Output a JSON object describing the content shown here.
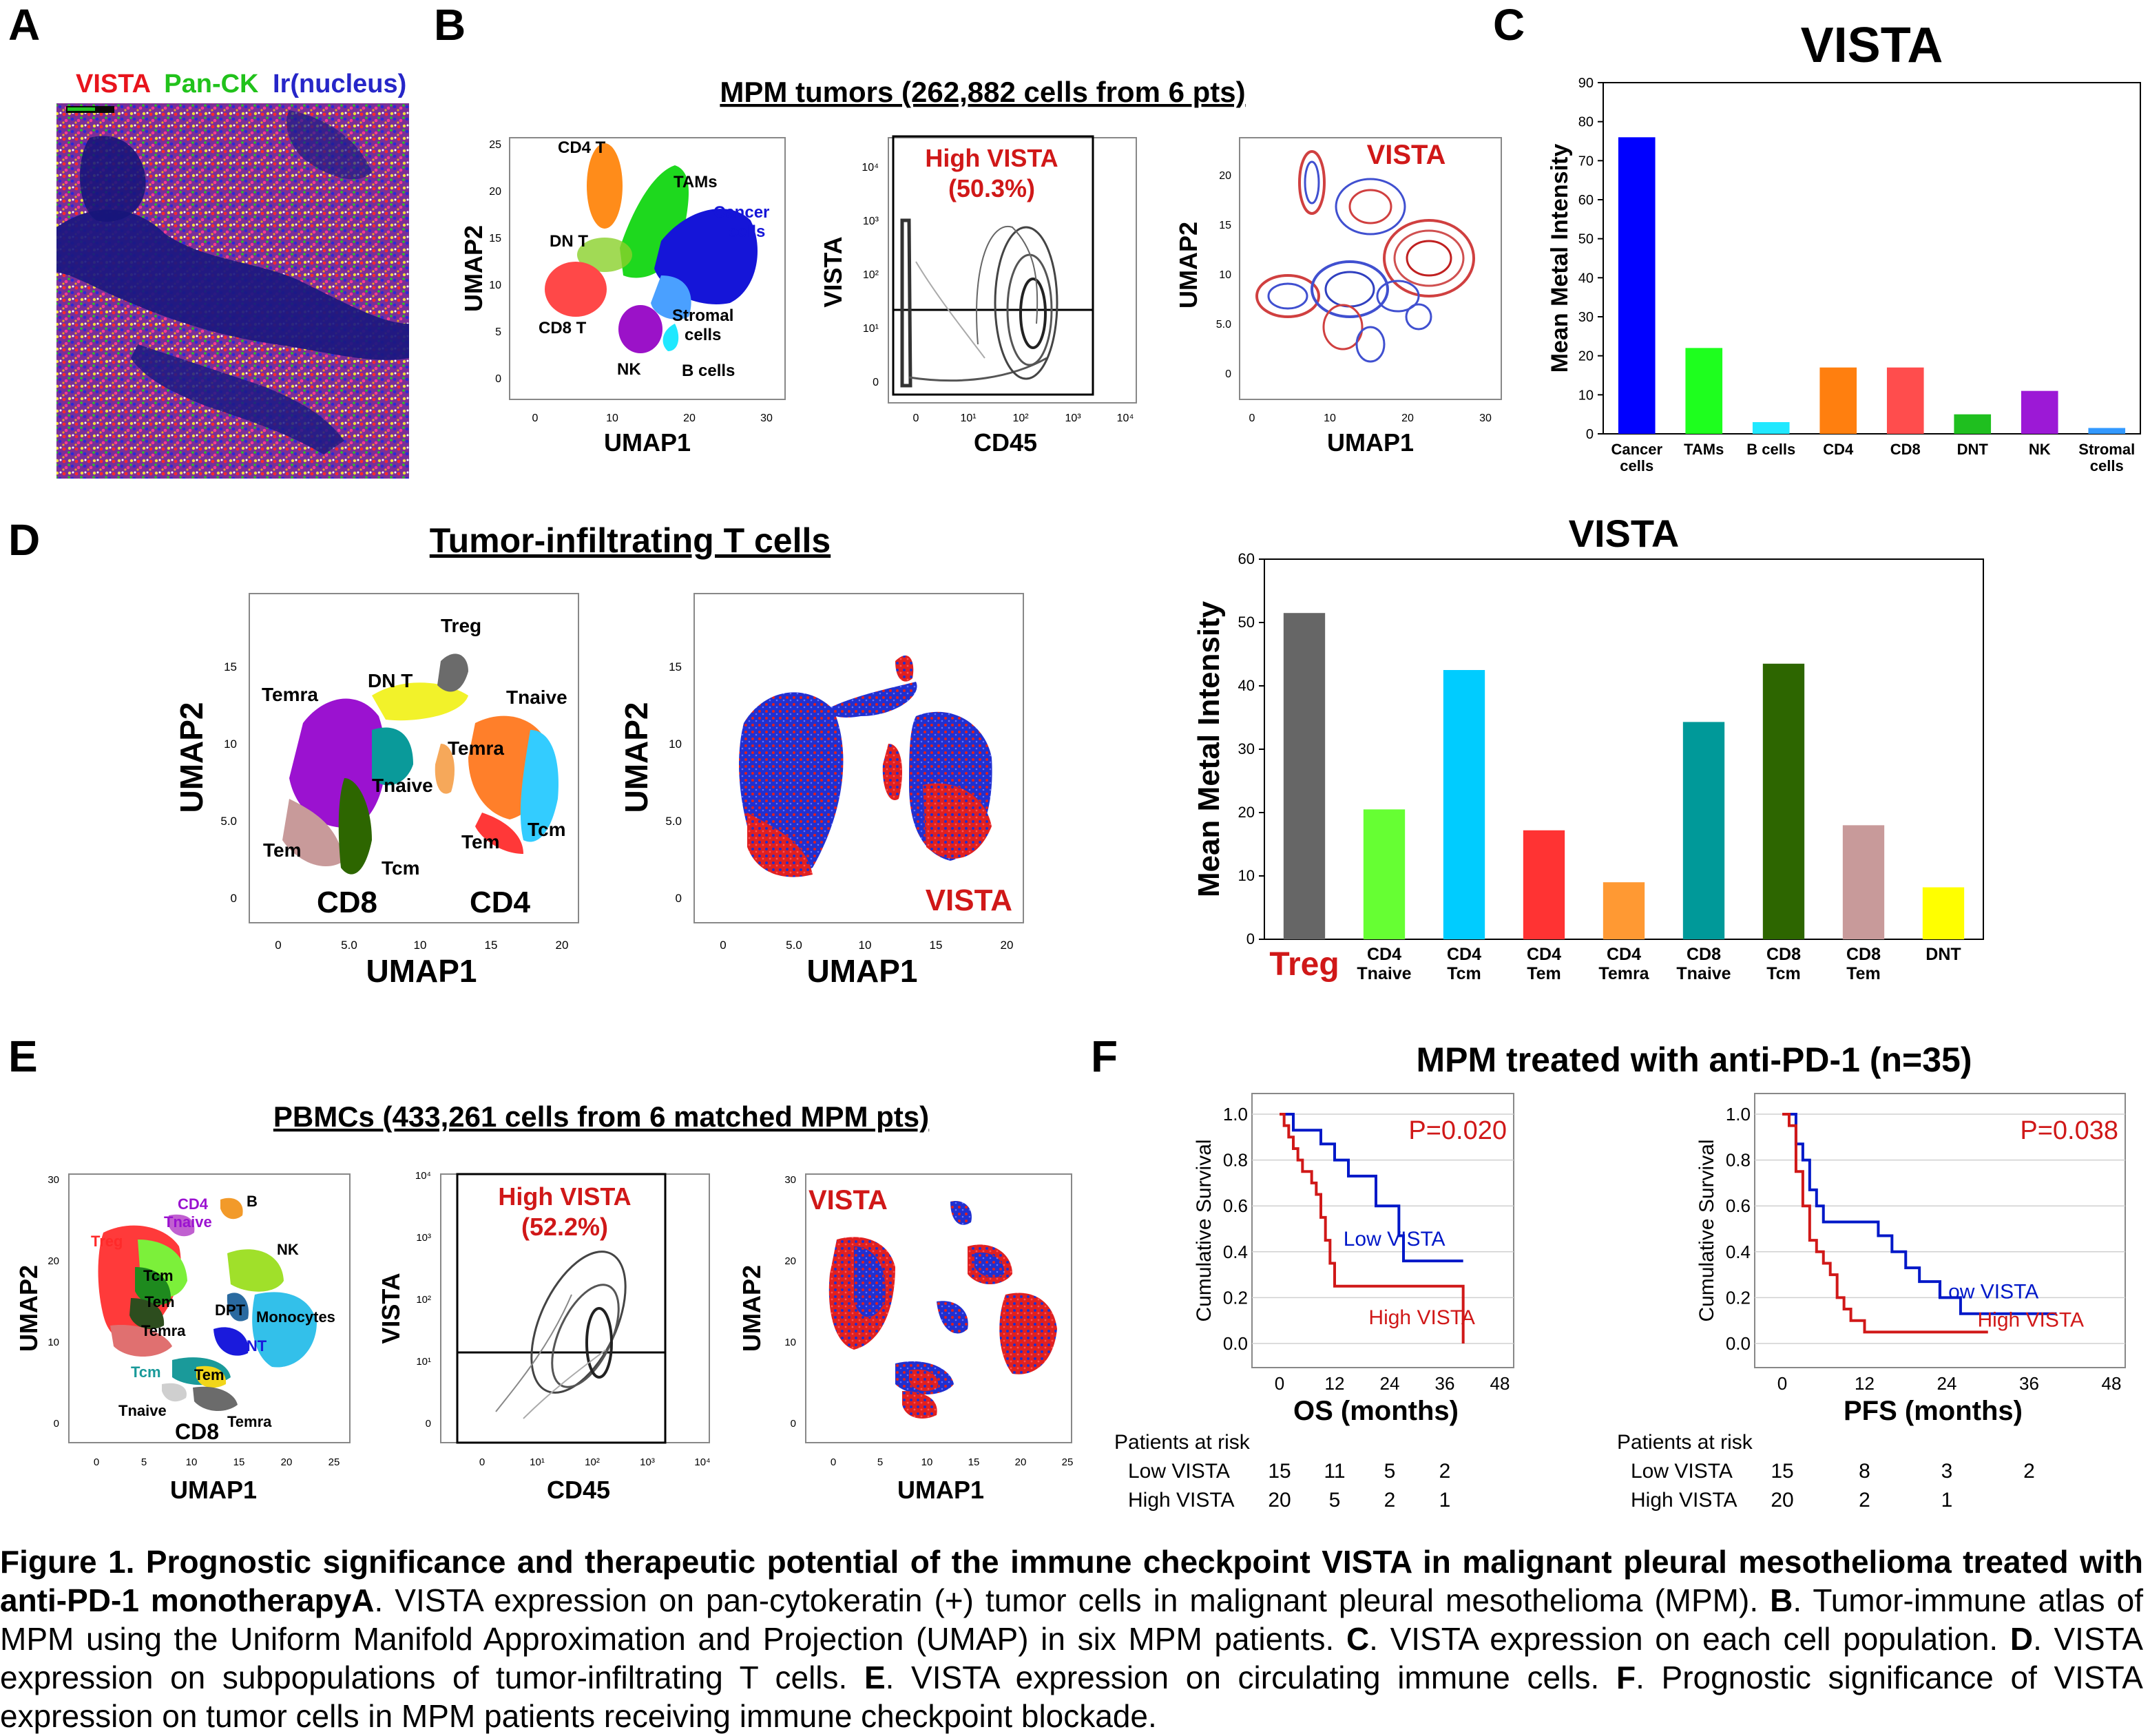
{
  "panel_letters": {
    "A": "A",
    "B": "B",
    "C": "C",
    "D": "D",
    "E": "E",
    "F": "F"
  },
  "panel_a": {
    "legend_red": "VISTA",
    "legend_green": "Pan-CK",
    "legend_blue": "Ir(nucleus)",
    "colors": {
      "red": "#e8141c",
      "green": "#21c21b",
      "blue": "#2626c8"
    }
  },
  "panel_b": {
    "title": "MPM tumors (262,882 cells from 6 pts)",
    "umap": {
      "xlabel": "UMAP1",
      "ylabel": "UMAP2",
      "xticks": [
        "0",
        "10",
        "20",
        "30"
      ],
      "yticks": [
        "0",
        "5",
        "10",
        "15",
        "20",
        "25"
      ],
      "labels": {
        "cd4t": "CD4 T",
        "tams": "TAMs",
        "cancer": "Cancer cells",
        "dnt": "DN T",
        "cd8t": "CD8 T",
        "stromal": "Stromal cells",
        "nk": "NK",
        "bcells": "B cells"
      }
    },
    "flow": {
      "xlabel": "CD45",
      "ylabel": "VISTA",
      "gate_text": "High VISTA",
      "gate_pct": "(50.3%)",
      "xticks": [
        "0",
        "10¹",
        "10²",
        "10³",
        "10⁴"
      ],
      "yticks": [
        "0",
        "10¹",
        "10²",
        "10³",
        "10⁴"
      ]
    },
    "density": {
      "xlabel": "UMAP1",
      "ylabel": "UMAP2",
      "label": "VISTA",
      "xticks": [
        "0",
        "10",
        "20",
        "30"
      ],
      "yticks": [
        "0",
        "5.0",
        "10",
        "15",
        "20"
      ]
    }
  },
  "panel_c": {
    "chart_data": {
      "type": "bar",
      "title": "VISTA",
      "ylabel": "Mean Metal Intensity",
      "ylim": [
        0,
        90
      ],
      "yticks": [
        "0",
        "10",
        "20",
        "30",
        "40",
        "50",
        "60",
        "70",
        "80",
        "90"
      ],
      "categories": [
        [
          "Cancer",
          "cells"
        ],
        [
          "TAMs"
        ],
        [
          "B cells"
        ],
        [
          "CD4"
        ],
        [
          "CD8"
        ],
        [
          "DNT"
        ],
        [
          "NK"
        ],
        [
          "Stromal",
          "cells"
        ]
      ],
      "values": [
        76,
        22,
        3,
        17,
        17,
        5,
        11,
        1.5
      ],
      "colors": [
        "#0000ff",
        "#1eff1e",
        "#21e8ff",
        "#ff7f0f",
        "#ff4d4d",
        "#1fbf1f",
        "#9c19d6",
        "#3399ff"
      ]
    }
  },
  "panel_d": {
    "title": "Tumor-infiltrating T cells",
    "umap": {
      "xlabel": "UMAP1",
      "ylabel": "UMAP2",
      "xticks": [
        "0",
        "5.0",
        "10",
        "15",
        "20"
      ],
      "yticks": [
        "0",
        "5.0",
        "10",
        "15"
      ],
      "labels": {
        "treg": "Treg",
        "temra8": "Temra",
        "dnt": "DN T",
        "tnaive4": "Tnaive",
        "temra4": "Temra",
        "tnaive8": "Tnaive",
        "tem8": "Tem",
        "tcm8": "Tcm",
        "tem4": "Tem",
        "tcm4": "Tcm",
        "cd8": "CD8",
        "cd4": "CD4"
      }
    },
    "vista_umap": {
      "xlabel": "UMAP1",
      "ylabel": "UMAP2",
      "label": "VISTA",
      "xticks": [
        "0",
        "5.0",
        "10",
        "15",
        "20"
      ],
      "yticks": [
        "0",
        "5.0",
        "10",
        "15"
      ]
    },
    "chart_data": {
      "type": "bar",
      "title": "VISTA",
      "ylabel": "Mean Metal Intensity",
      "ylim": [
        0,
        60
      ],
      "yticks": [
        "0",
        "10",
        "20",
        "30",
        "40",
        "50",
        "60"
      ],
      "categories": [
        [
          "Treg"
        ],
        [
          "CD4",
          "Tnaive"
        ],
        [
          "CD4",
          "Tcm"
        ],
        [
          "CD4",
          "Tem"
        ],
        [
          "CD4",
          "Temra"
        ],
        [
          "CD8",
          "Tnaive"
        ],
        [
          "CD8",
          "Tcm"
        ],
        [
          "CD8",
          "Tem"
        ],
        [
          "DNT"
        ]
      ],
      "values": [
        51.5,
        20.5,
        42.5,
        17.2,
        9,
        34.3,
        43.5,
        18,
        8.2
      ],
      "colors": [
        "#666666",
        "#66ff33",
        "#00ccff",
        "#ff3333",
        "#ff9933",
        "#009999",
        "#2d6600",
        "#c89a9a",
        "#ffff00"
      ]
    }
  },
  "panel_e": {
    "title": "PBMCs (433,261 cells from 6 matched MPM pts)",
    "umap": {
      "xlabel": "UMAP1",
      "ylabel": "UMAP2",
      "xticks": [
        "0",
        "5",
        "10",
        "15",
        "20",
        "25"
      ],
      "yticks": [
        "0",
        "10",
        "20",
        "30"
      ],
      "labels": {
        "cd4tnaive": "CD4 Tnaive",
        "b": "B",
        "treg": "Treg",
        "nk": "NK",
        "tcm": "Tcm",
        "tem": "Tem",
        "dpt": "DPT",
        "monocytes": "Monocytes",
        "temra": "Temra",
        "dnt": "DNT",
        "tcm8": "Tcm",
        "tem8": "Tem",
        "tnaive8": "Tnaive",
        "temra8": "Temra",
        "cd8": "CD8"
      }
    },
    "flow": {
      "xlabel": "CD45",
      "ylabel": "VISTA",
      "gate_text": "High VISTA",
      "gate_pct": "(52.2%)",
      "xticks": [
        "0",
        "10¹",
        "10²",
        "10³",
        "10⁴"
      ],
      "yticks": [
        "0",
        "10¹",
        "10²",
        "10³",
        "10⁴"
      ]
    },
    "vista_umap": {
      "xlabel": "UMAP1",
      "ylabel": "UMAP2",
      "label": "VISTA",
      "xticks": [
        "0",
        "5",
        "10",
        "15",
        "20",
        "25"
      ],
      "yticks": [
        "0",
        "10",
        "20",
        "30"
      ]
    }
  },
  "panel_f": {
    "title": "MPM treated with anti-PD-1 (n=35)",
    "chart_data": [
      {
        "type": "line",
        "xlabel": "OS (months)",
        "ylabel": "Cumulative Survival",
        "xlim": [
          0,
          48
        ],
        "ylim": [
          0,
          1.0
        ],
        "xticks": [
          "0",
          "12",
          "24",
          "36",
          "48"
        ],
        "yticks": [
          "0.0",
          "0.2",
          "0.4",
          "0.6",
          "0.8",
          "1.0"
        ],
        "pvalue": "P=0.020",
        "series": [
          {
            "name": "Low VISTA",
            "color": "#0018c8",
            "x": [
              0,
              2,
              3,
              6,
              9,
              12,
              15,
              21,
              26,
              27,
              40
            ],
            "y": [
              1.0,
              1.0,
              0.93,
              0.93,
              0.87,
              0.8,
              0.73,
              0.6,
              0.47,
              0.36,
              0.36
            ]
          },
          {
            "name": "High VISTA",
            "color": "#d01818",
            "x": [
              0,
              1,
              2,
              3,
              4,
              5,
              7,
              8,
              9,
              10,
              11,
              12,
              40,
              40
            ],
            "y": [
              1.0,
              0.95,
              0.9,
              0.85,
              0.8,
              0.75,
              0.7,
              0.65,
              0.55,
              0.45,
              0.35,
              0.25,
              0.25,
              0.0
            ]
          }
        ],
        "risk_header": "Patients at risk",
        "risk_rows": [
          {
            "label": "Low VISTA",
            "values": [
              "15",
              "11",
              "5",
              "2"
            ]
          },
          {
            "label": "High VISTA",
            "values": [
              "20",
              "5",
              "2",
              "1"
            ]
          }
        ]
      },
      {
        "type": "line",
        "xlabel": "PFS (months)",
        "ylabel": "Cumulative Survival",
        "xlim": [
          0,
          48
        ],
        "ylim": [
          0,
          1.0
        ],
        "xticks": [
          "0",
          "12",
          "24",
          "36",
          "48"
        ],
        "yticks": [
          "0.0",
          "0.2",
          "0.4",
          "0.6",
          "0.8",
          "1.0"
        ],
        "pvalue": "P=0.038",
        "series": [
          {
            "name": "Low VISTA",
            "color": "#0018c8",
            "x": [
              0,
              1,
              2,
              3,
              4,
              5,
              6,
              12,
              14,
              16,
              18,
              20,
              23,
              26,
              40
            ],
            "y": [
              1.0,
              1.0,
              0.87,
              0.8,
              0.67,
              0.6,
              0.53,
              0.53,
              0.47,
              0.4,
              0.33,
              0.27,
              0.2,
              0.13,
              0.13
            ]
          },
          {
            "name": "High VISTA",
            "color": "#d01818",
            "x": [
              0,
              1,
              2,
              3,
              4,
              5,
              6,
              7,
              8,
              9,
              10,
              12,
              30
            ],
            "y": [
              1.0,
              0.95,
              0.75,
              0.6,
              0.45,
              0.4,
              0.35,
              0.3,
              0.2,
              0.15,
              0.1,
              0.05,
              0.05
            ]
          }
        ],
        "risk_header": "Patients at risk",
        "risk_rows": [
          {
            "label": "Low VISTA",
            "values": [
              "15",
              "8",
              "3",
              "2"
            ]
          },
          {
            "label": "High VISTA",
            "values": [
              "20",
              "2",
              "1"
            ]
          }
        ]
      }
    ]
  },
  "caption": {
    "label": "Figure 1. Prognostic significance and therapeutic potential of the immune checkpoint VISTA in malignant pleural mesothelioma treated with anti-PD-1 monotherapy",
    "segments": [
      {
        "ref": "A",
        "text": ". VISTA expression on pan-cytokeratin (+) tumor cells in malignant pleural mesothelioma (MPM). "
      },
      {
        "ref": "B",
        "text": ". Tumor-immune atlas of MPM using the Uniform Manifold Approximation and Projection (UMAP) in six MPM patients. "
      },
      {
        "ref": "C",
        "text": ". VISTA expression on each cell population. "
      },
      {
        "ref": "D",
        "text": ". VISTA expression on subpopulations of tumor-infiltrating T cells. "
      },
      {
        "ref": "E",
        "text": ". VISTA expression on circulating immune cells. "
      },
      {
        "ref": "F",
        "text": ". Prognostic significance of VISTA expression on tumor cells in MPM patients receiving immune checkpoint blockade."
      }
    ]
  }
}
